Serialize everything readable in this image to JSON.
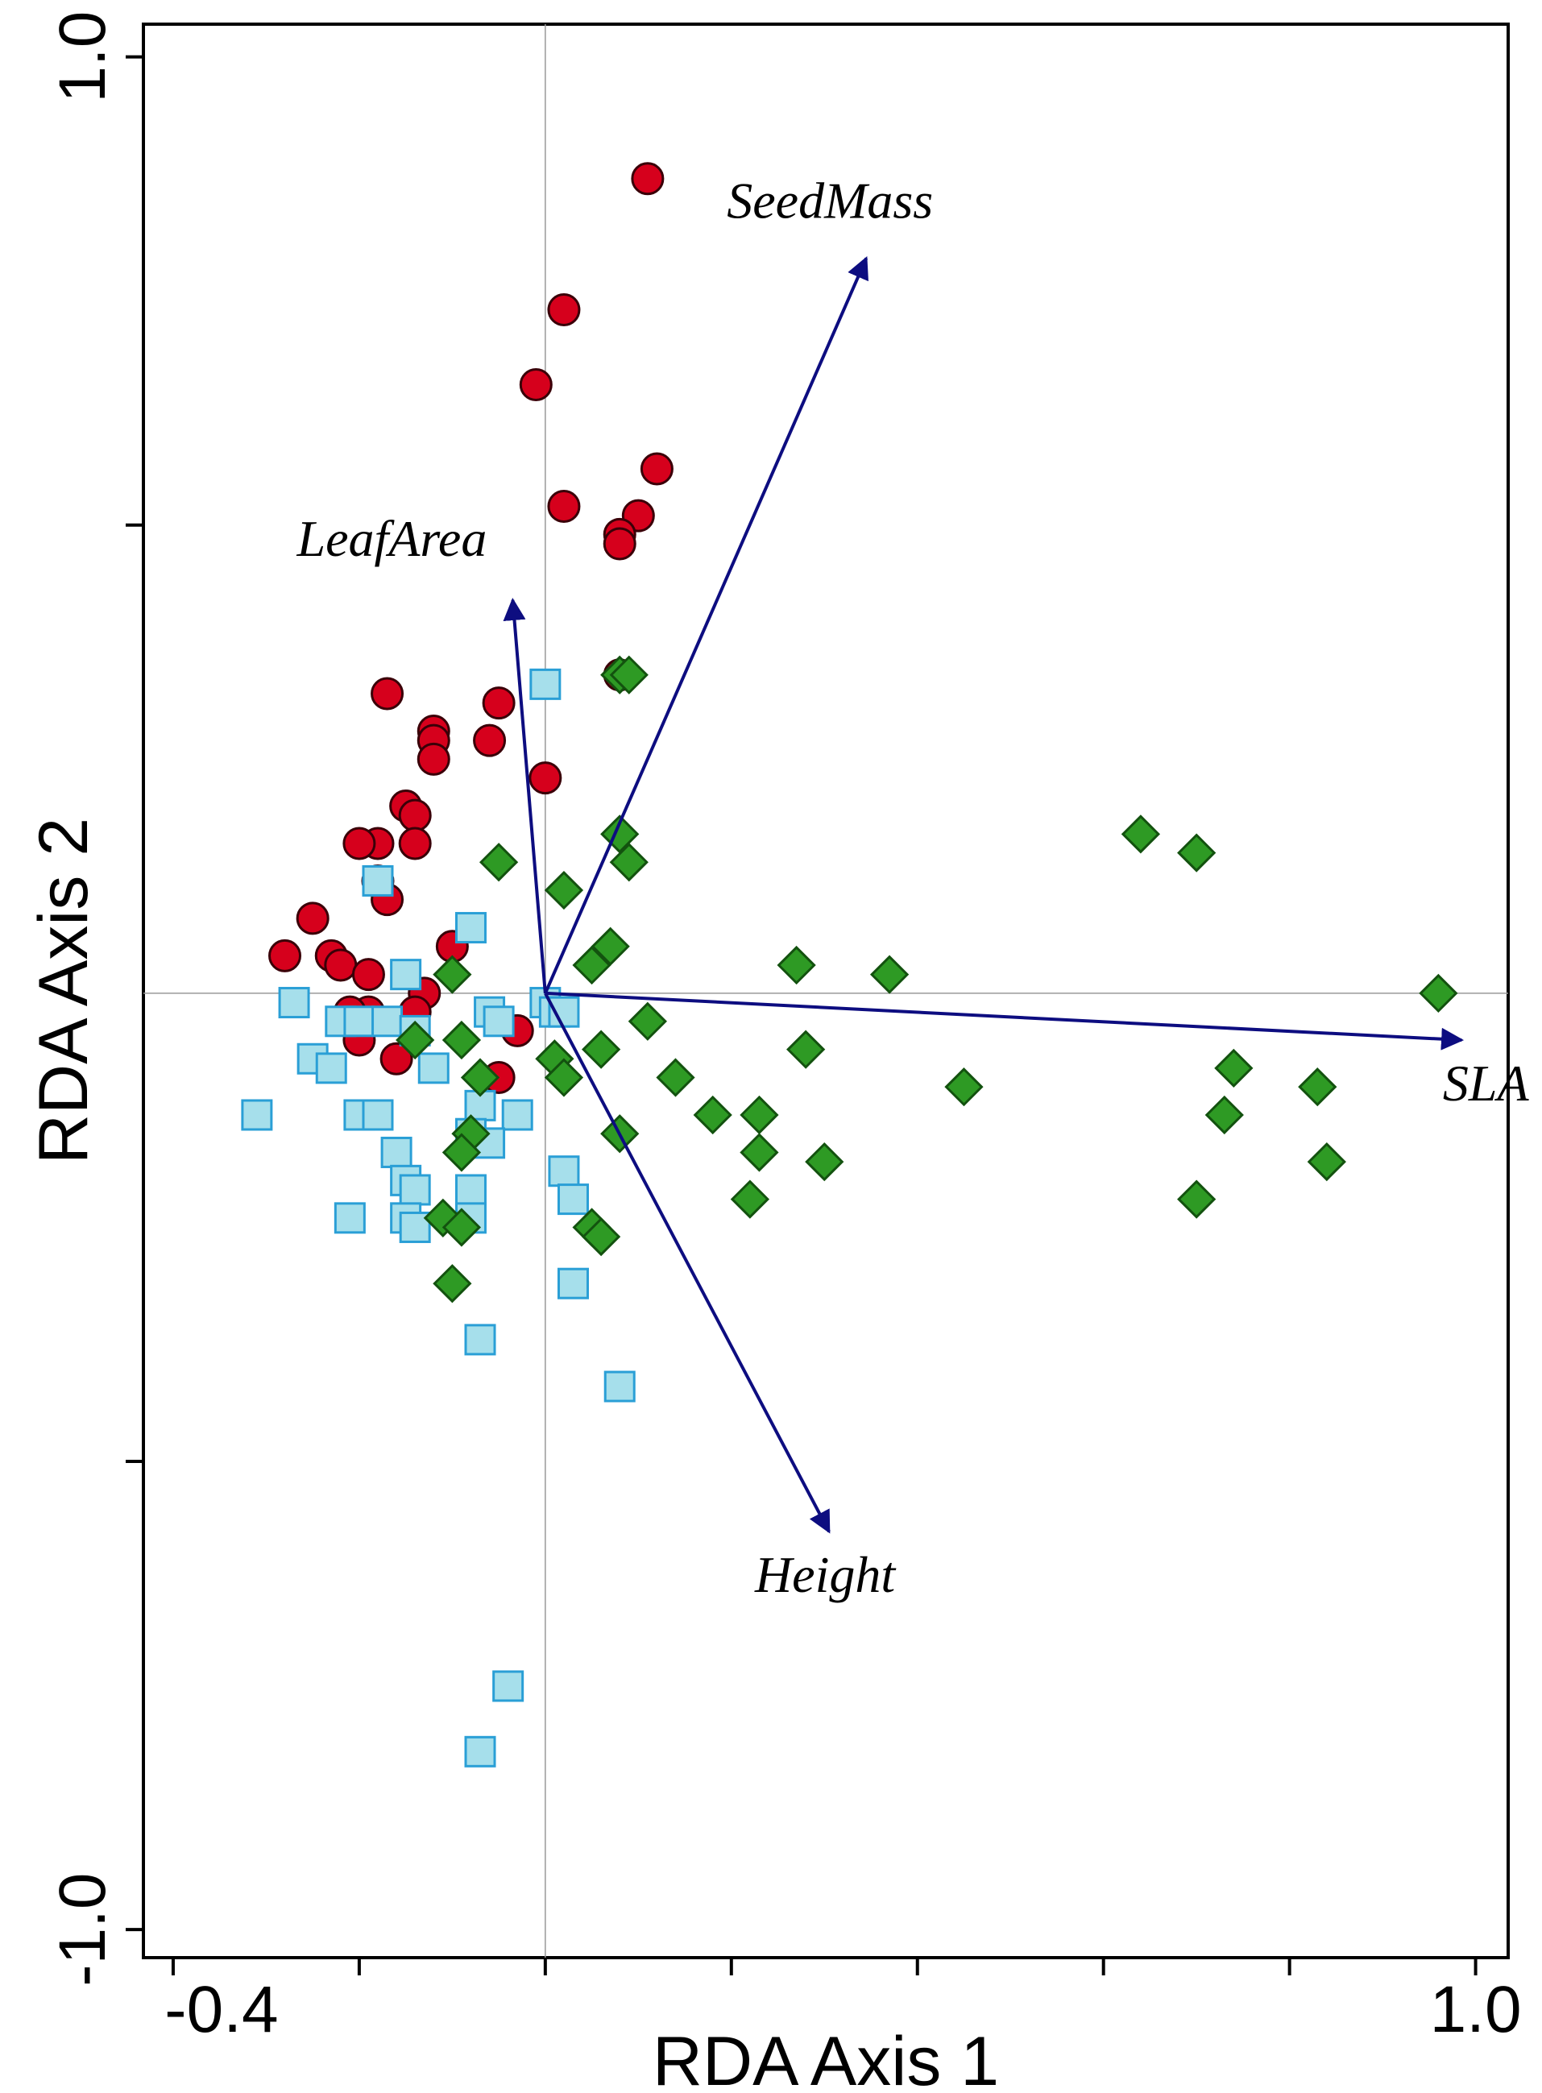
{
  "chart_data": {
    "type": "scatter",
    "subtype": "rda-biplot",
    "xlabel": "RDA Axis 1",
    "ylabel": "RDA Axis 2",
    "xlim": [
      -0.432,
      1.035
    ],
    "ylim": [
      -1.03,
      1.035
    ],
    "x_tick_labels": [
      {
        "value": -0.4,
        "label": "-0.4"
      },
      {
        "value": 1.0,
        "label": "1.0"
      }
    ],
    "y_tick_labels": [
      {
        "value": 1.0,
        "label": "1.0"
      },
      {
        "value": -1.0,
        "label": "-1.0"
      }
    ],
    "x_minor_ticks": [
      -0.2,
      0.0,
      0.2,
      0.4,
      0.6,
      0.8
    ],
    "y_minor_ticks": [
      0.5,
      -0.5
    ],
    "reference_lines": {
      "x": 0,
      "y": 0
    },
    "colors": {
      "circle_fill": "#d6001c",
      "circle_stroke": "#3a0008",
      "square_fill": "#a6dfeb",
      "square_stroke": "#2a9fd6",
      "diamond_fill": "#2e9a24",
      "diamond_stroke": "#13520f",
      "arrow": "#0d0d80",
      "frame": "#000000",
      "reference": "#999999"
    },
    "vectors": [
      {
        "name": "SeedMass",
        "x": 0.345,
        "y": 0.785
      },
      {
        "name": "LeafArea",
        "x": -0.035,
        "y": 0.42
      },
      {
        "name": "SLA",
        "x": 0.985,
        "y": -0.05
      },
      {
        "name": "Height",
        "x": 0.305,
        "y": -0.575
      }
    ],
    "series": [
      {
        "name": "Circles",
        "marker": "circle",
        "points": [
          [
            0.11,
            0.87
          ],
          [
            0.02,
            0.73
          ],
          [
            -0.01,
            0.65
          ],
          [
            0.02,
            0.52
          ],
          [
            0.12,
            0.56
          ],
          [
            0.1,
            0.51
          ],
          [
            0.08,
            0.49
          ],
          [
            0.08,
            0.48
          ],
          [
            -0.17,
            0.32
          ],
          [
            -0.05,
            0.31
          ],
          [
            -0.12,
            0.28
          ],
          [
            -0.12,
            0.27
          ],
          [
            -0.06,
            0.27
          ],
          [
            -0.12,
            0.25
          ],
          [
            0.0,
            0.23
          ],
          [
            -0.15,
            0.2
          ],
          [
            -0.14,
            0.19
          ],
          [
            -0.18,
            0.16
          ],
          [
            -0.2,
            0.16
          ],
          [
            -0.14,
            0.16
          ],
          [
            -0.18,
            0.12
          ],
          [
            -0.25,
            0.08
          ],
          [
            -0.17,
            0.1
          ],
          [
            -0.28,
            0.04
          ],
          [
            -0.23,
            0.04
          ],
          [
            -0.22,
            0.03
          ],
          [
            -0.19,
            0.02
          ],
          [
            -0.1,
            0.05
          ],
          [
            -0.13,
            0.0
          ],
          [
            -0.14,
            -0.02
          ],
          [
            -0.19,
            -0.02
          ],
          [
            -0.21,
            -0.02
          ],
          [
            -0.2,
            -0.05
          ],
          [
            -0.16,
            -0.07
          ],
          [
            -0.03,
            -0.04
          ],
          [
            -0.05,
            -0.09
          ],
          [
            0.08,
            0.34
          ]
        ]
      },
      {
        "name": "Squares",
        "marker": "square",
        "points": [
          [
            0.0,
            0.33
          ],
          [
            -0.18,
            0.12
          ],
          [
            -0.08,
            0.07
          ],
          [
            -0.15,
            0.02
          ],
          [
            -0.27,
            -0.01
          ],
          [
            -0.22,
            -0.03
          ],
          [
            -0.2,
            -0.03
          ],
          [
            -0.17,
            -0.03
          ],
          [
            -0.14,
            -0.04
          ],
          [
            -0.06,
            -0.02
          ],
          [
            -0.05,
            -0.03
          ],
          [
            0.0,
            -0.01
          ],
          [
            0.01,
            -0.02
          ],
          [
            0.02,
            -0.02
          ],
          [
            -0.25,
            -0.07
          ],
          [
            -0.23,
            -0.08
          ],
          [
            -0.12,
            -0.08
          ],
          [
            -0.07,
            -0.12
          ],
          [
            -0.03,
            -0.13
          ],
          [
            -0.31,
            -0.13
          ],
          [
            -0.2,
            -0.13
          ],
          [
            -0.18,
            -0.13
          ],
          [
            -0.16,
            -0.17
          ],
          [
            -0.15,
            -0.2
          ],
          [
            -0.14,
            -0.21
          ],
          [
            -0.08,
            -0.15
          ],
          [
            -0.06,
            -0.16
          ],
          [
            0.02,
            -0.19
          ],
          [
            0.03,
            -0.22
          ],
          [
            -0.21,
            -0.24
          ],
          [
            -0.15,
            -0.24
          ],
          [
            -0.14,
            -0.25
          ],
          [
            -0.08,
            -0.21
          ],
          [
            -0.08,
            -0.24
          ],
          [
            0.03,
            -0.31
          ],
          [
            -0.07,
            -0.37
          ],
          [
            0.08,
            -0.42
          ],
          [
            -0.04,
            -0.74
          ],
          [
            -0.07,
            -0.81
          ]
        ]
      },
      {
        "name": "Diamonds",
        "marker": "diamond",
        "points": [
          [
            0.08,
            0.34
          ],
          [
            0.09,
            0.34
          ],
          [
            0.08,
            0.17
          ],
          [
            0.09,
            0.14
          ],
          [
            -0.05,
            0.14
          ],
          [
            0.02,
            0.11
          ],
          [
            0.07,
            0.05
          ],
          [
            0.05,
            0.03
          ],
          [
            0.27,
            0.03
          ],
          [
            0.37,
            0.02
          ],
          [
            -0.1,
            0.02
          ],
          [
            0.64,
            0.17
          ],
          [
            0.7,
            0.15
          ],
          [
            0.96,
            0.0
          ],
          [
            0.11,
            -0.03
          ],
          [
            -0.14,
            -0.05
          ],
          [
            -0.09,
            -0.05
          ],
          [
            0.06,
            -0.06
          ],
          [
            0.28,
            -0.06
          ],
          [
            0.01,
            -0.07
          ],
          [
            0.02,
            -0.09
          ],
          [
            0.14,
            -0.09
          ],
          [
            0.45,
            -0.1
          ],
          [
            -0.07,
            -0.09
          ],
          [
            0.74,
            -0.08
          ],
          [
            0.83,
            -0.1
          ],
          [
            0.18,
            -0.13
          ],
          [
            0.23,
            -0.13
          ],
          [
            0.73,
            -0.13
          ],
          [
            -0.08,
            -0.15
          ],
          [
            -0.09,
            -0.17
          ],
          [
            0.08,
            -0.15
          ],
          [
            0.23,
            -0.17
          ],
          [
            0.3,
            -0.18
          ],
          [
            0.84,
            -0.18
          ],
          [
            0.22,
            -0.22
          ],
          [
            0.7,
            -0.22
          ],
          [
            -0.11,
            -0.24
          ],
          [
            -0.09,
            -0.25
          ],
          [
            0.05,
            -0.25
          ],
          [
            0.06,
            -0.26
          ],
          [
            -0.1,
            -0.31
          ]
        ]
      }
    ]
  }
}
